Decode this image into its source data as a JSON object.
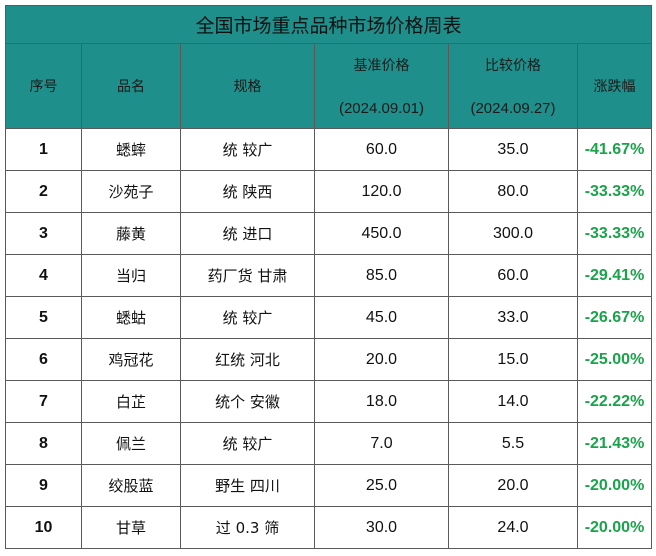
{
  "title": "全国市场重点品种市场价格周表",
  "headers": {
    "no": "序号",
    "name": "品名",
    "spec": "规格",
    "base_price": "基准价格",
    "base_date": "(2024.09.01)",
    "cmp_price": "比较价格",
    "cmp_date": "(2024.09.27)",
    "change": "涨跌幅"
  },
  "rows": [
    {
      "no": "1",
      "name": "蟋蟀",
      "spec": "统 较广",
      "base": "60.0",
      "cmp": "35.0",
      "change": "-41.67%"
    },
    {
      "no": "2",
      "name": "沙苑子",
      "spec": "统 陕西",
      "base": "120.0",
      "cmp": "80.0",
      "change": "-33.33%"
    },
    {
      "no": "3",
      "name": "藤黄",
      "spec": "统 进口",
      "base": "450.0",
      "cmp": "300.0",
      "change": "-33.33%"
    },
    {
      "no": "4",
      "name": "当归",
      "spec": "药厂货 甘肃",
      "base": "85.0",
      "cmp": "60.0",
      "change": "-29.41%"
    },
    {
      "no": "5",
      "name": "蟋蛄",
      "spec": "统 较广",
      "base": "45.0",
      "cmp": "33.0",
      "change": "-26.67%"
    },
    {
      "no": "6",
      "name": "鸡冠花",
      "spec": "红统 河北",
      "base": "20.0",
      "cmp": "15.0",
      "change": "-25.00%"
    },
    {
      "no": "7",
      "name": "白芷",
      "spec": "统个 安徽",
      "base": "18.0",
      "cmp": "14.0",
      "change": "-22.22%"
    },
    {
      "no": "8",
      "name": "佩兰",
      "spec": "统 较广",
      "base": "7.0",
      "cmp": "5.5",
      "change": "-21.43%"
    },
    {
      "no": "9",
      "name": "绞股蓝",
      "spec": "野生 四川",
      "base": "25.0",
      "cmp": "20.0",
      "change": "-20.00%"
    },
    {
      "no": "10",
      "name": "甘草",
      "spec": "过 0.3 筛",
      "base": "30.0",
      "cmp": "24.0",
      "change": "-20.00%"
    }
  ],
  "colors": {
    "header_bg": "#1f8f8b",
    "change_text": "#1aa34a"
  }
}
